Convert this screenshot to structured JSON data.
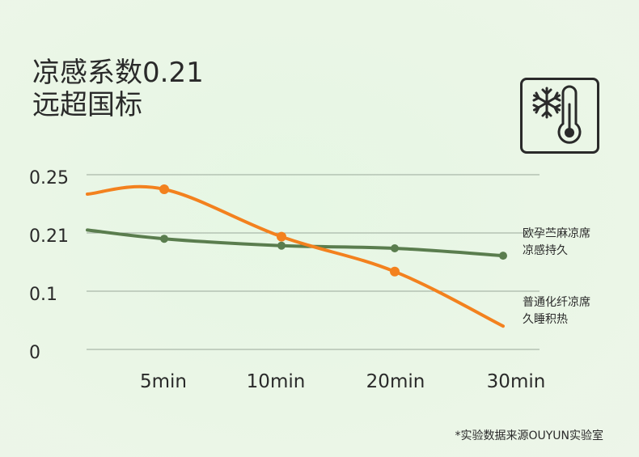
{
  "headline": {
    "line1": "凉感系数0.21",
    "line2": "远超国标"
  },
  "icon": {
    "name": "snowflake-thermometer-icon"
  },
  "chart_data": {
    "type": "line",
    "categories": [
      "5min",
      "10min",
      "20min",
      "30min"
    ],
    "y_tick_labels": [
      "0.25",
      "0.21",
      "0.1",
      "0"
    ],
    "series": [
      {
        "name_lines": [
          "欧孕苎麻凉席",
          "凉感持久"
        ],
        "color": "#5a7d4e",
        "values": [
          0.199,
          0.186,
          0.181,
          0.167
        ]
      },
      {
        "name_lines": [
          "普通化纤凉席",
          "久睡积热"
        ],
        "color": "#f3811e",
        "values": [
          0.24,
          0.203,
          0.137,
          0.04
        ]
      }
    ],
    "legend_position": "right",
    "grid": true
  },
  "footnote": "*实验数据来源OUYUN实验室"
}
